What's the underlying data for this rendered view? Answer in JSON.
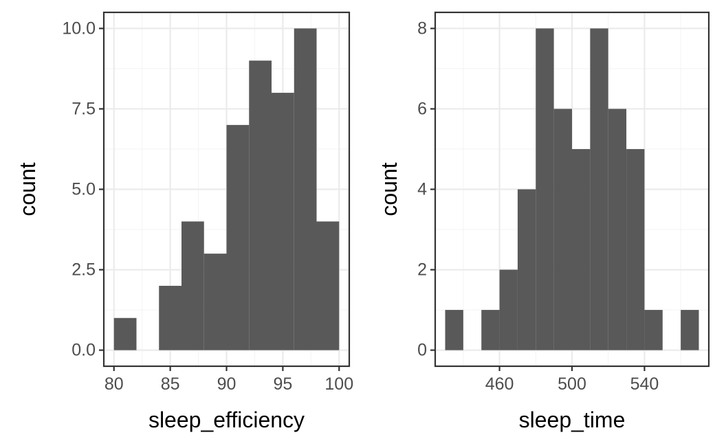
{
  "chart_data": [
    {
      "type": "bar",
      "subtype": "histogram",
      "xlabel": "sleep_efficiency",
      "ylabel": "count",
      "bar_color": "#595959",
      "bin_width": 2,
      "bins": [
        {
          "x0": 80,
          "x1": 82,
          "count": 1
        },
        {
          "x0": 82,
          "x1": 84,
          "count": 0
        },
        {
          "x0": 84,
          "x1": 86,
          "count": 2
        },
        {
          "x0": 86,
          "x1": 88,
          "count": 4
        },
        {
          "x0": 88,
          "x1": 90,
          "count": 3
        },
        {
          "x0": 90,
          "x1": 92,
          "count": 7
        },
        {
          "x0": 92,
          "x1": 94,
          "count": 9
        },
        {
          "x0": 94,
          "x1": 96,
          "count": 8
        },
        {
          "x0": 96,
          "x1": 98,
          "count": 10
        },
        {
          "x0": 98,
          "x1": 100,
          "count": 4
        }
      ],
      "xlim": [
        79.1,
        100.9
      ],
      "ylim": [
        -0.5,
        10.5
      ],
      "xticks": [
        80,
        85,
        90,
        95,
        100
      ],
      "xtick_labels": [
        "80",
        "85",
        "90",
        "95",
        "100"
      ],
      "yticks": [
        0,
        2.5,
        5,
        7.5,
        10
      ],
      "ytick_labels": [
        "0.0",
        "2.5",
        "5.0",
        "7.5",
        "10.0"
      ],
      "grid": true
    },
    {
      "type": "bar",
      "subtype": "histogram",
      "xlabel": "sleep_time",
      "ylabel": "count",
      "bar_color": "#595959",
      "bin_width": 10,
      "bins": [
        {
          "x0": 430,
          "x1": 440,
          "count": 1
        },
        {
          "x0": 440,
          "x1": 450,
          "count": 0
        },
        {
          "x0": 450,
          "x1": 460,
          "count": 1
        },
        {
          "x0": 460,
          "x1": 470,
          "count": 2
        },
        {
          "x0": 470,
          "x1": 480,
          "count": 4
        },
        {
          "x0": 480,
          "x1": 490,
          "count": 8
        },
        {
          "x0": 490,
          "x1": 500,
          "count": 6
        },
        {
          "x0": 500,
          "x1": 510,
          "count": 5
        },
        {
          "x0": 510,
          "x1": 520,
          "count": 8
        },
        {
          "x0": 520,
          "x1": 530,
          "count": 6
        },
        {
          "x0": 530,
          "x1": 540,
          "count": 5
        },
        {
          "x0": 540,
          "x1": 550,
          "count": 1
        },
        {
          "x0": 550,
          "x1": 560,
          "count": 0
        },
        {
          "x0": 560,
          "x1": 570,
          "count": 1
        }
      ],
      "xlim": [
        424.5,
        575.5
      ],
      "ylim": [
        -0.4,
        8.4
      ],
      "xticks": [
        460,
        500,
        540
      ],
      "xtick_labels": [
        "460",
        "500",
        "540"
      ],
      "yticks": [
        0,
        2,
        4,
        6,
        8
      ],
      "ytick_labels": [
        "0",
        "2",
        "4",
        "6",
        "8"
      ],
      "grid": true
    }
  ]
}
